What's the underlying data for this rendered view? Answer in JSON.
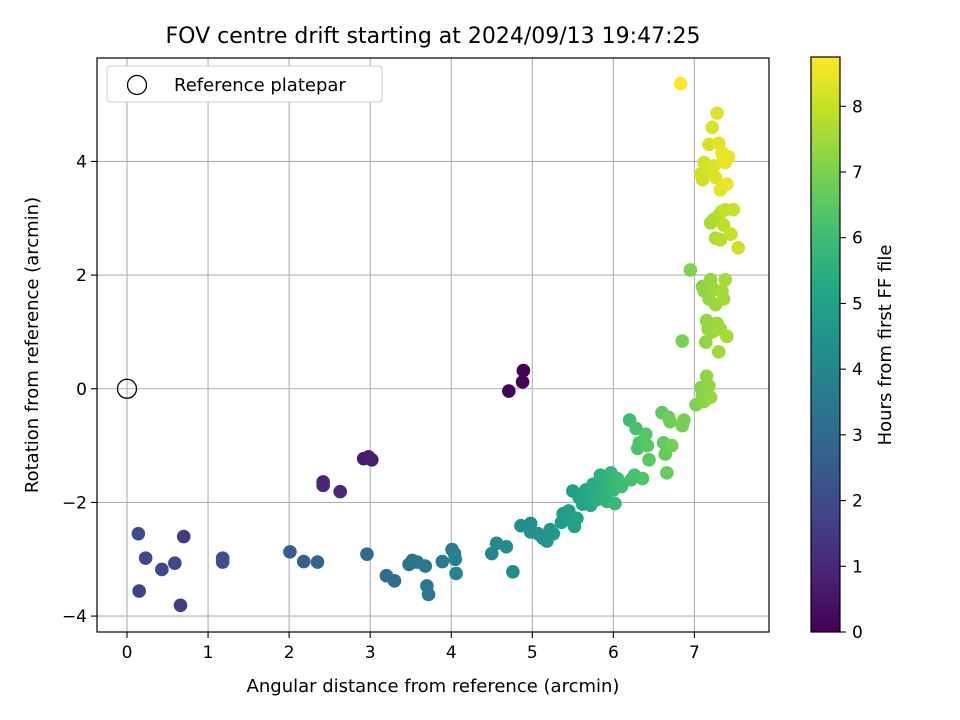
{
  "chart_data": {
    "type": "scatter",
    "title": "FOV centre drift starting at 2024/09/13 19:47:25",
    "xlabel": "Angular distance from reference (arcmin)",
    "ylabel": "Rotation from reference (arcmin)",
    "xlim": [
      -0.37,
      7.92
    ],
    "ylim": [
      -4.28,
      5.82
    ],
    "xticks": [
      0,
      1,
      2,
      3,
      4,
      5,
      6,
      7
    ],
    "yticks": [
      -4,
      -2,
      0,
      2,
      4
    ],
    "grid": true,
    "legend": {
      "placement": "top-left",
      "entries": [
        "Reference platepar"
      ]
    },
    "reference_point": {
      "x": 0,
      "y": 0
    },
    "colorbar": {
      "label": "Hours from first FF file",
      "min": 0,
      "max": 8.75,
      "ticks": [
        0,
        1,
        2,
        3,
        4,
        5,
        6,
        7,
        8
      ],
      "colormap": "viridis"
    },
    "points": [
      {
        "x": 4.89,
        "y": 0.32,
        "c": 0.0
      },
      {
        "x": 4.88,
        "y": 0.12,
        "c": 0.05
      },
      {
        "x": 4.71,
        "y": -0.04,
        "c": 0.1
      },
      {
        "x": 2.92,
        "y": -1.23,
        "c": 0.6
      },
      {
        "x": 2.98,
        "y": -1.2,
        "c": 0.65
      },
      {
        "x": 3.02,
        "y": -1.25,
        "c": 0.7
      },
      {
        "x": 2.42,
        "y": -1.64,
        "c": 0.9
      },
      {
        "x": 2.42,
        "y": -1.7,
        "c": 0.95
      },
      {
        "x": 2.63,
        "y": -1.81,
        "c": 1.0
      },
      {
        "x": 0.7,
        "y": -2.6,
        "c": 1.5
      },
      {
        "x": 0.66,
        "y": -3.81,
        "c": 1.6
      },
      {
        "x": 0.15,
        "y": -3.56,
        "c": 1.7
      },
      {
        "x": 0.23,
        "y": -2.98,
        "c": 1.8
      },
      {
        "x": 0.43,
        "y": -3.18,
        "c": 1.9
      },
      {
        "x": 0.59,
        "y": -3.07,
        "c": 1.95
      },
      {
        "x": 0.14,
        "y": -2.55,
        "c": 2.0
      },
      {
        "x": 1.18,
        "y": -2.98,
        "c": 2.1
      },
      {
        "x": 1.18,
        "y": -3.05,
        "c": 2.15
      },
      {
        "x": 2.01,
        "y": -2.87,
        "c": 2.6
      },
      {
        "x": 2.18,
        "y": -3.04,
        "c": 2.7
      },
      {
        "x": 2.35,
        "y": -3.05,
        "c": 2.8
      },
      {
        "x": 2.96,
        "y": -2.91,
        "c": 3.1
      },
      {
        "x": 3.2,
        "y": -3.29,
        "c": 3.15
      },
      {
        "x": 3.3,
        "y": -3.38,
        "c": 3.2
      },
      {
        "x": 3.48,
        "y": -3.09,
        "c": 3.3
      },
      {
        "x": 3.52,
        "y": -3.02,
        "c": 3.35
      },
      {
        "x": 3.58,
        "y": -3.05,
        "c": 3.4
      },
      {
        "x": 3.68,
        "y": -3.12,
        "c": 3.45
      },
      {
        "x": 3.7,
        "y": -3.47,
        "c": 3.5
      },
      {
        "x": 3.72,
        "y": -3.62,
        "c": 3.55
      },
      {
        "x": 3.89,
        "y": -3.04,
        "c": 3.6
      },
      {
        "x": 4.01,
        "y": -2.83,
        "c": 3.7
      },
      {
        "x": 4.04,
        "y": -2.9,
        "c": 3.75
      },
      {
        "x": 4.05,
        "y": -3.0,
        "c": 3.8
      },
      {
        "x": 4.06,
        "y": -3.25,
        "c": 3.85
      },
      {
        "x": 4.5,
        "y": -2.9,
        "c": 4.0
      },
      {
        "x": 4.56,
        "y": -2.72,
        "c": 4.1
      },
      {
        "x": 4.68,
        "y": -2.78,
        "c": 4.15
      },
      {
        "x": 4.76,
        "y": -3.22,
        "c": 4.2
      },
      {
        "x": 4.86,
        "y": -2.41,
        "c": 4.3
      },
      {
        "x": 4.98,
        "y": -2.37,
        "c": 4.35
      },
      {
        "x": 4.98,
        "y": -2.52,
        "c": 4.4
      },
      {
        "x": 5.07,
        "y": -2.55,
        "c": 4.45
      },
      {
        "x": 5.13,
        "y": -2.63,
        "c": 4.5
      },
      {
        "x": 5.18,
        "y": -2.68,
        "c": 4.55
      },
      {
        "x": 5.22,
        "y": -2.48,
        "c": 4.6
      },
      {
        "x": 5.26,
        "y": -2.55,
        "c": 4.65
      },
      {
        "x": 5.36,
        "y": -2.35,
        "c": 4.7
      },
      {
        "x": 5.38,
        "y": -2.2,
        "c": 4.75
      },
      {
        "x": 5.42,
        "y": -2.28,
        "c": 4.8
      },
      {
        "x": 5.45,
        "y": -2.15,
        "c": 4.85
      },
      {
        "x": 5.48,
        "y": -2.32,
        "c": 4.9
      },
      {
        "x": 5.5,
        "y": -1.8,
        "c": 4.95
      },
      {
        "x": 5.52,
        "y": -2.42,
        "c": 5.0
      },
      {
        "x": 5.55,
        "y": -2.28,
        "c": 5.05
      },
      {
        "x": 5.58,
        "y": -1.92,
        "c": 5.1
      },
      {
        "x": 5.62,
        "y": -2.03,
        "c": 5.15
      },
      {
        "x": 5.66,
        "y": -1.78,
        "c": 5.2
      },
      {
        "x": 5.68,
        "y": -1.9,
        "c": 5.25
      },
      {
        "x": 5.72,
        "y": -2.05,
        "c": 5.3
      },
      {
        "x": 5.75,
        "y": -1.68,
        "c": 5.35
      },
      {
        "x": 5.78,
        "y": -1.85,
        "c": 5.4
      },
      {
        "x": 5.8,
        "y": -1.95,
        "c": 5.45
      },
      {
        "x": 5.84,
        "y": -1.52,
        "c": 5.5
      },
      {
        "x": 5.86,
        "y": -1.7,
        "c": 5.55
      },
      {
        "x": 5.88,
        "y": -1.85,
        "c": 5.6
      },
      {
        "x": 5.92,
        "y": -1.98,
        "c": 5.65
      },
      {
        "x": 5.95,
        "y": -1.62,
        "c": 5.7
      },
      {
        "x": 5.97,
        "y": -1.48,
        "c": 5.75
      },
      {
        "x": 6.0,
        "y": -1.78,
        "c": 5.8
      },
      {
        "x": 6.02,
        "y": -2.02,
        "c": 5.85
      },
      {
        "x": 6.05,
        "y": -1.58,
        "c": 5.9
      },
      {
        "x": 6.08,
        "y": -1.65,
        "c": 5.95
      },
      {
        "x": 6.1,
        "y": -1.72,
        "c": 6.0
      },
      {
        "x": 6.2,
        "y": -0.55,
        "c": 6.05
      },
      {
        "x": 6.22,
        "y": -1.6,
        "c": 6.1
      },
      {
        "x": 6.26,
        "y": -1.52,
        "c": 6.15
      },
      {
        "x": 6.28,
        "y": -0.7,
        "c": 6.2
      },
      {
        "x": 6.3,
        "y": -1.05,
        "c": 6.25
      },
      {
        "x": 6.32,
        "y": -0.95,
        "c": 6.3
      },
      {
        "x": 6.36,
        "y": -1.58,
        "c": 6.35
      },
      {
        "x": 6.4,
        "y": -0.8,
        "c": 6.4
      },
      {
        "x": 6.42,
        "y": -1.0,
        "c": 6.45
      },
      {
        "x": 6.44,
        "y": -1.25,
        "c": 6.5
      },
      {
        "x": 6.6,
        "y": -0.42,
        "c": 6.55
      },
      {
        "x": 6.62,
        "y": -0.95,
        "c": 6.6
      },
      {
        "x": 6.64,
        "y": -1.15,
        "c": 6.65
      },
      {
        "x": 6.66,
        "y": -1.48,
        "c": 6.7
      },
      {
        "x": 6.68,
        "y": -0.5,
        "c": 6.75
      },
      {
        "x": 6.7,
        "y": -0.58,
        "c": 6.8
      },
      {
        "x": 6.72,
        "y": -1.0,
        "c": 6.85
      },
      {
        "x": 6.85,
        "y": -0.65,
        "c": 6.9
      },
      {
        "x": 6.87,
        "y": -0.55,
        "c": 6.95
      },
      {
        "x": 6.85,
        "y": 0.84,
        "c": 7.0
      },
      {
        "x": 7.02,
        "y": -0.28,
        "c": 7.05
      },
      {
        "x": 7.08,
        "y": 0.02,
        "c": 7.1
      },
      {
        "x": 7.1,
        "y": -0.12,
        "c": 7.15
      },
      {
        "x": 7.12,
        "y": -0.22,
        "c": 7.2
      },
      {
        "x": 7.15,
        "y": 0.22,
        "c": 7.25
      },
      {
        "x": 7.18,
        "y": 0.05,
        "c": 7.3
      },
      {
        "x": 7.2,
        "y": -0.15,
        "c": 7.35
      },
      {
        "x": 6.95,
        "y": 2.09,
        "c": 7.1
      },
      {
        "x": 7.1,
        "y": 1.8,
        "c": 7.2
      },
      {
        "x": 7.12,
        "y": 1.72,
        "c": 7.25
      },
      {
        "x": 7.14,
        "y": 0.82,
        "c": 7.3
      },
      {
        "x": 7.15,
        "y": 1.2,
        "c": 7.32
      },
      {
        "x": 7.17,
        "y": 1.05,
        "c": 7.34
      },
      {
        "x": 7.18,
        "y": 1.58,
        "c": 7.36
      },
      {
        "x": 7.2,
        "y": 1.92,
        "c": 7.38
      },
      {
        "x": 7.22,
        "y": 1.0,
        "c": 7.4
      },
      {
        "x": 7.24,
        "y": 1.75,
        "c": 7.42
      },
      {
        "x": 7.26,
        "y": 1.48,
        "c": 7.44
      },
      {
        "x": 7.28,
        "y": 1.15,
        "c": 7.46
      },
      {
        "x": 7.3,
        "y": 0.65,
        "c": 7.48
      },
      {
        "x": 7.32,
        "y": 1.05,
        "c": 7.5
      },
      {
        "x": 7.34,
        "y": 1.72,
        "c": 7.52
      },
      {
        "x": 7.36,
        "y": 1.58,
        "c": 7.54
      },
      {
        "x": 7.38,
        "y": 1.92,
        "c": 7.56
      },
      {
        "x": 7.4,
        "y": 0.92,
        "c": 7.58
      },
      {
        "x": 7.2,
        "y": 2.92,
        "c": 7.6
      },
      {
        "x": 7.24,
        "y": 2.98,
        "c": 7.65
      },
      {
        "x": 7.26,
        "y": 2.65,
        "c": 7.7
      },
      {
        "x": 7.3,
        "y": 3.05,
        "c": 7.75
      },
      {
        "x": 7.32,
        "y": 2.62,
        "c": 7.8
      },
      {
        "x": 7.34,
        "y": 3.12,
        "c": 7.85
      },
      {
        "x": 7.36,
        "y": 2.88,
        "c": 7.9
      },
      {
        "x": 7.38,
        "y": 3.15,
        "c": 7.95
      },
      {
        "x": 7.45,
        "y": 2.72,
        "c": 8.0
      },
      {
        "x": 7.48,
        "y": 3.15,
        "c": 8.02
      },
      {
        "x": 7.54,
        "y": 2.48,
        "c": 8.05
      },
      {
        "x": 7.08,
        "y": 3.78,
        "c": 8.1
      },
      {
        "x": 7.1,
        "y": 3.68,
        "c": 8.12
      },
      {
        "x": 7.12,
        "y": 3.98,
        "c": 8.15
      },
      {
        "x": 7.15,
        "y": 3.85,
        "c": 8.18
      },
      {
        "x": 7.18,
        "y": 4.3,
        "c": 8.2
      },
      {
        "x": 7.22,
        "y": 4.6,
        "c": 8.25
      },
      {
        "x": 7.24,
        "y": 3.92,
        "c": 8.28
      },
      {
        "x": 7.26,
        "y": 3.72,
        "c": 8.3
      },
      {
        "x": 7.28,
        "y": 4.85,
        "c": 8.35
      },
      {
        "x": 7.3,
        "y": 4.32,
        "c": 8.38
      },
      {
        "x": 7.32,
        "y": 3.5,
        "c": 8.4
      },
      {
        "x": 7.34,
        "y": 4.15,
        "c": 8.42
      },
      {
        "x": 7.36,
        "y": 4.02,
        "c": 8.45
      },
      {
        "x": 7.38,
        "y": 3.98,
        "c": 8.48
      },
      {
        "x": 7.4,
        "y": 3.6,
        "c": 8.5
      },
      {
        "x": 7.42,
        "y": 4.08,
        "c": 8.52
      },
      {
        "x": 6.83,
        "y": 5.37,
        "c": 8.75
      }
    ]
  }
}
